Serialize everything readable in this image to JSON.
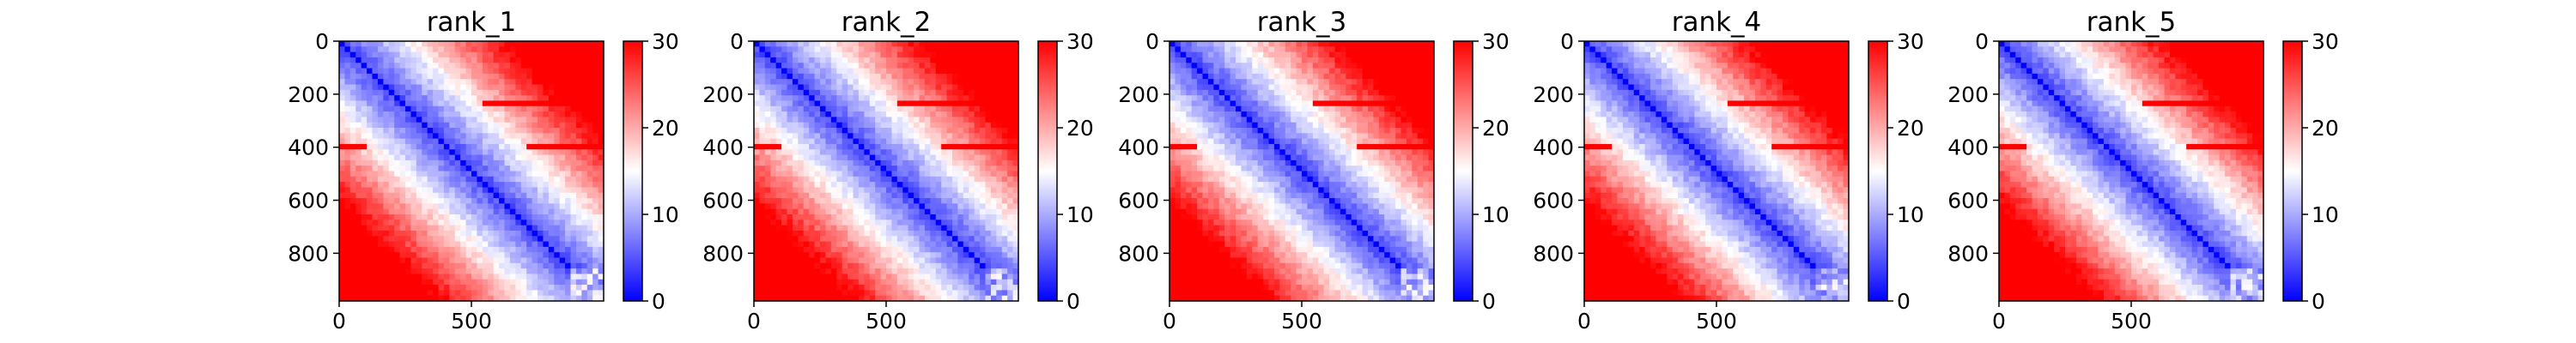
{
  "chart_data": [
    {
      "type": "heatmap",
      "title": "rank_1",
      "x_ticks": [
        0,
        500
      ],
      "y_ticks": [
        0,
        200,
        400,
        600,
        800
      ],
      "xlim": [
        0,
        1000
      ],
      "ylim": [
        980,
        0
      ],
      "colorbar": {
        "ticks": [
          0,
          10,
          20,
          30
        ],
        "vmin": 0,
        "vmax": 30,
        "colormap": "bwr"
      }
    },
    {
      "type": "heatmap",
      "title": "rank_2",
      "x_ticks": [
        0,
        500
      ],
      "y_ticks": [
        0,
        200,
        400,
        600,
        800
      ],
      "xlim": [
        0,
        1000
      ],
      "ylim": [
        980,
        0
      ],
      "colorbar": {
        "ticks": [
          0,
          10,
          20,
          30
        ],
        "vmin": 0,
        "vmax": 30,
        "colormap": "bwr"
      }
    },
    {
      "type": "heatmap",
      "title": "rank_3",
      "x_ticks": [
        0,
        500
      ],
      "y_ticks": [
        0,
        200,
        400,
        600,
        800
      ],
      "xlim": [
        0,
        1000
      ],
      "ylim": [
        980,
        0
      ],
      "colorbar": {
        "ticks": [
          0,
          10,
          20,
          30
        ],
        "vmin": 0,
        "vmax": 30,
        "colormap": "bwr"
      }
    },
    {
      "type": "heatmap",
      "title": "rank_4",
      "x_ticks": [
        0,
        500
      ],
      "y_ticks": [
        0,
        200,
        400,
        600,
        800
      ],
      "xlim": [
        0,
        1000
      ],
      "ylim": [
        980,
        0
      ],
      "colorbar": {
        "ticks": [
          0,
          10,
          20,
          30
        ],
        "vmin": 0,
        "vmax": 30,
        "colormap": "bwr"
      }
    },
    {
      "type": "heatmap",
      "title": "rank_5",
      "x_ticks": [
        0,
        500
      ],
      "y_ticks": [
        0,
        200,
        400,
        600,
        800
      ],
      "xlim": [
        0,
        1000
      ],
      "ylim": [
        980,
        0
      ],
      "colorbar": {
        "ticks": [
          0,
          10,
          20,
          30
        ],
        "vmin": 0,
        "vmax": 30,
        "colormap": "bwr"
      }
    }
  ],
  "colors": {
    "low": "#0000ff",
    "mid": "#ffffff",
    "high": "#ff0000",
    "axis": "#000000"
  }
}
